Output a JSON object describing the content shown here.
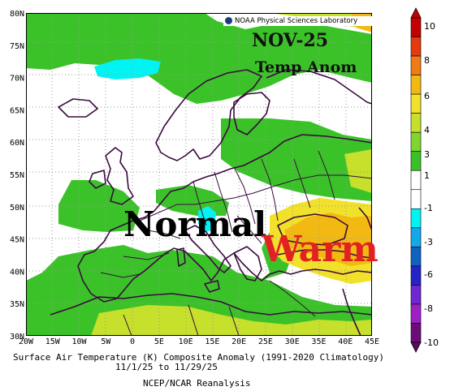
{
  "map": {
    "credit": "NOAA Physical Sciences Laboratory",
    "title": "NOV-25",
    "subtitle": "Temp Anom",
    "annotation_normal": "Normal",
    "annotation_warm": "Warm",
    "lat_labels": [
      "80N",
      "75N",
      "70N",
      "65N",
      "60N",
      "55N",
      "50N",
      "45N",
      "40N",
      "35N",
      "30N"
    ],
    "lon_labels": [
      "20W",
      "15W",
      "10W",
      "5W",
      "0",
      "5E",
      "10E",
      "15E",
      "20E",
      "25E",
      "30E",
      "35E",
      "40E",
      "45E"
    ]
  },
  "colorbar": {
    "tick_labels": [
      "10",
      "8",
      "6",
      "4",
      "3",
      "1",
      "-1",
      "-3",
      "-6",
      "-8",
      "-10"
    ],
    "colors": [
      "#c40000",
      "#e43a10",
      "#f07a16",
      "#f3b913",
      "#f2e12a",
      "#c6e02c",
      "#7fd62e",
      "#38c226",
      "#ffffff",
      "#ffffff",
      "#00f4f4",
      "#13a8e8",
      "#1062c0",
      "#2424c8",
      "#7026d0",
      "#9c20c4",
      "#6c0c78"
    ]
  },
  "caption": {
    "line1": "Surface Air Temperature (K) Composite Anomaly (1991-2020 Climatology)",
    "line2": "11/1/25  to 11/29/25",
    "line3": "NCEP/NCAR Reanalysis"
  }
}
